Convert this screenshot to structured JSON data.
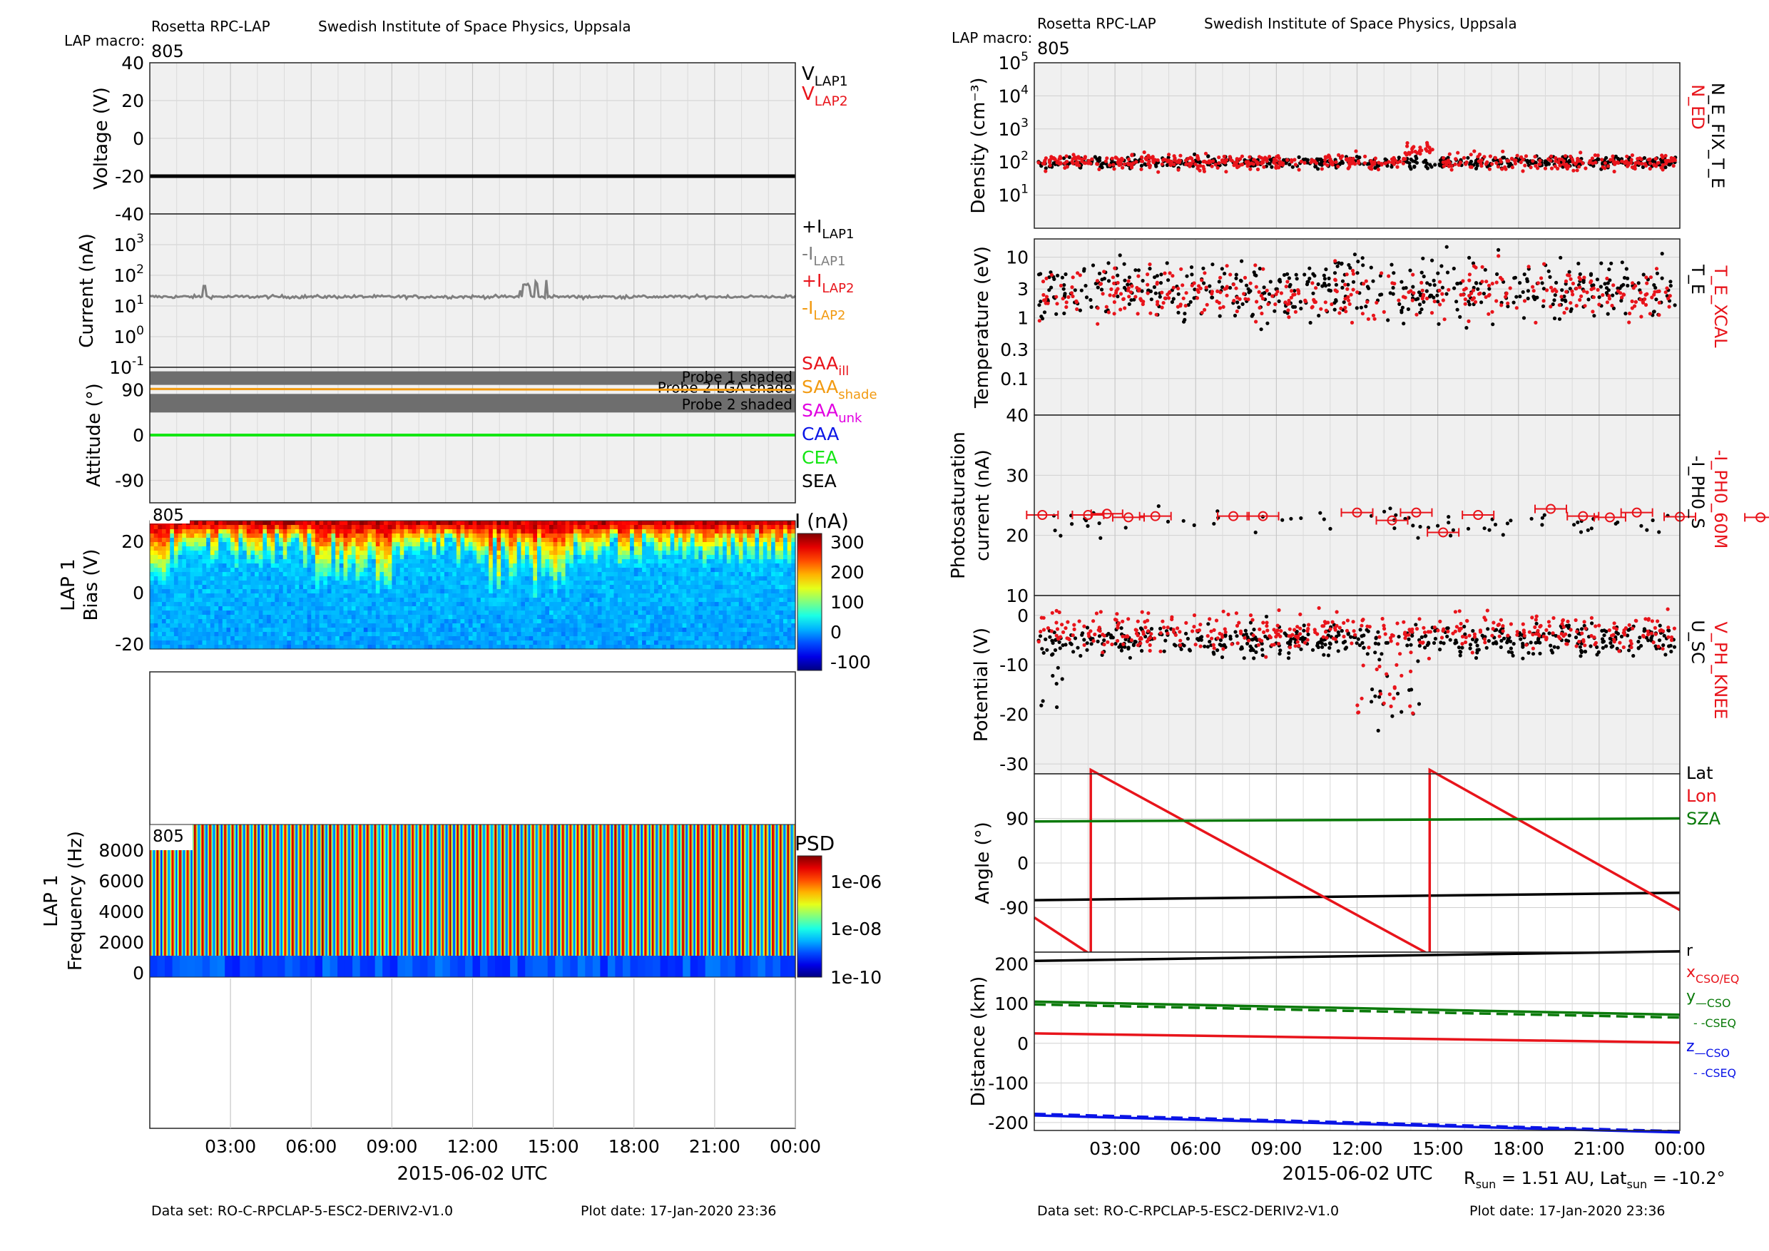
{
  "left": {
    "header": {
      "mission": "Rosetta RPC-LAP",
      "institute": "Swedish Institute of Space Physics, Uppsala",
      "macro_label": "LAP macro:",
      "macro": "805"
    },
    "footer": {
      "dataset": "Data set: RO-C-RPCLAP-5-ESC2-DERIV2-V1.0",
      "plotdate": "Plot date: 17-Jan-2020 23:36"
    },
    "xlabel": "2015-06-02 UTC",
    "xticks": [
      "03:00",
      "06:00",
      "09:00",
      "12:00",
      "15:00",
      "18:00",
      "21:00",
      "00:00"
    ]
  },
  "right": {
    "header": {
      "mission": "Rosetta RPC-LAP",
      "institute": "Swedish Institute of Space Physics, Uppsala",
      "macro_label": "LAP macro:",
      "macro": "805"
    },
    "footer": {
      "dataset": "Data set: RO-C-RPCLAP-5-ESC2-DERIV2-V1.0",
      "plotdate": "Plot date: 17-Jan-2020 23:36"
    },
    "xlabel": "2015-06-02 UTC",
    "xticks": [
      "03:00",
      "06:00",
      "09:00",
      "12:00",
      "15:00",
      "18:00",
      "21:00",
      "00:00"
    ],
    "rsun_note": "R<sub>sun</sub> = 1.51 AU, Lat<sub>sun</sub> = -10.2°"
  },
  "colors": {
    "red": "#e8141b",
    "black": "#000000",
    "green": "#0a7a0a",
    "blue": "#0a14e6",
    "gray": "#7f7f7f",
    "orange": "#f29a10",
    "magenta": "#e100e1",
    "bright_green": "#14e614"
  },
  "chart_data": [
    {
      "type": "line",
      "id": "voltage",
      "ylabel": "Voltage (V)",
      "ylim": [
        -40,
        40
      ],
      "yticks": [
        "40",
        "20",
        "0",
        "-20",
        "-40"
      ],
      "series": [
        {
          "name": "V_LAP1",
          "color": "#000000",
          "values": [
            -20,
            -20
          ]
        }
      ],
      "legend": [
        {
          "main": "V",
          "sub": "LAP1",
          "color": "#000000"
        },
        {
          "main": "V",
          "sub": "LAP2",
          "color": "#e8141b"
        }
      ],
      "grid": true
    },
    {
      "type": "scatter",
      "id": "current",
      "log": true,
      "ylabel": "Current (nA)",
      "ylim": [
        0.1,
        10000
      ],
      "yticks": [
        {
          "base": "10",
          "exp": "3"
        },
        {
          "base": "10",
          "exp": "2"
        },
        {
          "base": "10",
          "exp": "1"
        },
        {
          "base": "10",
          "exp": "0"
        },
        {
          "base": "10",
          "exp": "-1"
        }
      ],
      "series": [
        {
          "name": "+I_LAP1",
          "color": "#7f7f7f",
          "typical": 20
        }
      ],
      "legend": [
        {
          "main": "+I",
          "sub": "LAP1",
          "color": "#000000"
        },
        {
          "main": "-I",
          "sub": "LAP1",
          "color": "#7f7f7f"
        },
        {
          "main": "+I",
          "sub": "LAP2",
          "color": "#e8141b"
        },
        {
          "main": "-I",
          "sub": "LAP2",
          "color": "#f29a10"
        }
      ],
      "grid": true
    },
    {
      "type": "line",
      "id": "attitude",
      "ylabel": "Attitude (°)",
      "ylim": [
        -135,
        135
      ],
      "yticks": [
        "90",
        "0",
        "-90"
      ],
      "annotations": [
        "Probe 1 shaded",
        "Probe 2 LGA shade",
        "Probe 2 shaded"
      ],
      "series": [
        {
          "name": "SAA_shade",
          "color": "#f29a10",
          "values": [
            92,
            90
          ]
        },
        {
          "name": "CEA",
          "color": "#14e614",
          "values": [
            0,
            0
          ]
        }
      ],
      "legend": [
        {
          "main": "SAA",
          "sub": "ill",
          "color": "#e8141b"
        },
        {
          "main": "SAA",
          "sub": "shade",
          "color": "#f29a10"
        },
        {
          "main": "SAA",
          "sub": "unk",
          "color": "#e100e1"
        },
        {
          "main": "CAA",
          "sub": "",
          "color": "#0a14e6"
        },
        {
          "main": "CEA",
          "sub": "",
          "color": "#14e614"
        },
        {
          "main": "SEA",
          "sub": "",
          "color": "#000000"
        }
      ],
      "grid": true
    },
    {
      "type": "heatmap",
      "id": "sweep",
      "macro": "805",
      "ylabel": "LAP 1 Bias (V)",
      "yticks": [
        "20",
        "0",
        "-20"
      ],
      "colorbar": {
        "label": "I (nA)",
        "ticks": [
          "300",
          "200",
          "100",
          "0",
          "-100"
        ]
      }
    },
    {
      "type": "heatmap",
      "id": "psd",
      "macro": "805",
      "ylabel": "LAP 1 Frequency (Hz)",
      "yticks": [
        "8000",
        "6000",
        "4000",
        "2000",
        "0"
      ],
      "colorbar": {
        "label": "PSD",
        "ticks": [
          "1e-06",
          "1e-08",
          "1e-10"
        ]
      }
    },
    {
      "type": "scatter",
      "id": "density",
      "log": true,
      "ylabel": "Density (cm⁻³)",
      "ylim": [
        1,
        100000
      ],
      "yticks": [
        {
          "base": "10",
          "exp": "5"
        },
        {
          "base": "10",
          "exp": "4"
        },
        {
          "base": "10",
          "exp": "3"
        },
        {
          "base": "10",
          "exp": "2"
        },
        {
          "base": "10",
          "exp": "1"
        }
      ],
      "series": [
        {
          "name": "N_ED",
          "color": "#e8141b",
          "typical": 100
        },
        {
          "name": "N_E_FIX_T_E",
          "color": "#000000",
          "typical": 100
        }
      ],
      "legend_right": [
        {
          "text": "N_ED",
          "color": "#e8141b"
        },
        {
          "text": "N_E_FIX_T_E",
          "color": "#000000"
        }
      ],
      "grid": true
    },
    {
      "type": "scatter",
      "id": "temperature",
      "log": true,
      "ylabel": "Temperature (eV)",
      "ylim": [
        0.03,
        20
      ],
      "yticks": [
        "10",
        "3",
        "1",
        "0.3",
        "0.1"
      ],
      "series": [
        {
          "name": "T_E_XCAL",
          "color": "#e8141b",
          "typical": 2.5
        },
        {
          "name": "T_E",
          "color": "#000000",
          "typical": 3
        }
      ],
      "legend_right": [
        {
          "text": "T_E_XCAL",
          "color": "#e8141b"
        },
        {
          "text": "T_E",
          "color": "#000000"
        }
      ],
      "grid": true
    },
    {
      "type": "scatter",
      "id": "photosat",
      "ylabel": "Photosaturation current (nA)",
      "ylim": [
        10,
        40
      ],
      "yticks": [
        "40",
        "30",
        "20",
        "10"
      ],
      "series": [
        {
          "name": "-I_PH0_60M",
          "color": "#e8141b",
          "x": [
            0.3,
            2.0,
            2.7,
            3.5,
            4.5,
            7.4,
            8.5,
            12.0,
            13.3,
            14.2,
            15.2,
            16.5,
            19.2,
            20.4,
            21.4,
            22.4,
            24.0,
            27.0
          ],
          "values": [
            23.4,
            23.4,
            23.6,
            23.0,
            23.2,
            23.2,
            23.2,
            23.8,
            22.5,
            23.8,
            20.5,
            23.4,
            24.4,
            23.2,
            23.0,
            23.8,
            23.1,
            23.0
          ]
        },
        {
          "name": "-I_PH0_S",
          "color": "#000000",
          "typical": 22
        }
      ],
      "legend_right": [
        {
          "text": "-I_PH0_60M",
          "color": "#e8141b"
        },
        {
          "text": "-I_PH0_S",
          "color": "#000000"
        }
      ],
      "grid": true
    },
    {
      "type": "scatter",
      "id": "potential",
      "ylabel": "Potential (V)",
      "ylim": [
        -32,
        4
      ],
      "yticks": [
        "0",
        "-10",
        "-20",
        "-30"
      ],
      "series": [
        {
          "name": "V_PH_KNEE",
          "color": "#e8141b",
          "typical": -3
        },
        {
          "name": "U_SC",
          "color": "#000000",
          "typical": -5
        }
      ],
      "legend_right": [
        {
          "text": "V_PH_KNEE",
          "color": "#e8141b"
        },
        {
          "text": "U_SC",
          "color": "#000000"
        }
      ],
      "grid": true
    },
    {
      "type": "line",
      "id": "angle",
      "ylabel": "Angle (°)",
      "ylim": [
        -180,
        180
      ],
      "yticks": [
        "90",
        "0",
        "-90"
      ],
      "series": [
        {
          "name": "Lat",
          "color": "#000000",
          "x": [
            0,
            24
          ],
          "values": [
            -75,
            -60
          ]
        },
        {
          "name": "Lon",
          "color": "#e8141b",
          "x": [
            0,
            2.1,
            2.1,
            14.7,
            14.7,
            24
          ],
          "values": [
            -110,
            -185,
            188,
            -185,
            188,
            -95
          ]
        },
        {
          "name": "SZA",
          "color": "#0a7a0a",
          "x": [
            0,
            24
          ],
          "values": [
            84,
            90
          ]
        }
      ],
      "legend": [
        {
          "main": "Lat",
          "sub": "",
          "color": "#000000"
        },
        {
          "main": "Lon",
          "sub": "",
          "color": "#e8141b"
        },
        {
          "main": "SZA",
          "sub": "",
          "color": "#0a7a0a"
        }
      ],
      "grid": true
    },
    {
      "type": "line",
      "id": "distance",
      "ylabel": "Distance (km)",
      "ylim": [
        -220,
        230
      ],
      "yticks": [
        "200",
        "100",
        "0",
        "-100",
        "-200"
      ],
      "series": [
        {
          "name": "r",
          "color": "#000000",
          "x": [
            0,
            24
          ],
          "values": [
            208,
            232
          ]
        },
        {
          "name": "x CSO/EQ",
          "color": "#e8141b",
          "x": [
            0,
            24
          ],
          "values": [
            25,
            2
          ]
        },
        {
          "name": "y CSO",
          "color": "#0a7a0a",
          "x": [
            0,
            24
          ],
          "values": [
            105,
            72
          ]
        },
        {
          "name": "y CSEQ",
          "color": "#0a7a0a",
          "dash": true,
          "x": [
            0,
            24
          ],
          "values": [
            98,
            65
          ]
        },
        {
          "name": "z CSO",
          "color": "#0a14e6",
          "x": [
            0,
            24
          ],
          "values": [
            -182,
            -225
          ]
        },
        {
          "name": "z CSEQ",
          "color": "#0a14e6",
          "dash": true,
          "x": [
            0,
            24
          ],
          "values": [
            -178,
            -222
          ]
        }
      ],
      "legend": [
        {
          "main": "r",
          "sub": "",
          "color": "#000000"
        },
        {
          "main": "x",
          "sub": "CSO/EQ",
          "color": "#e8141b"
        },
        {
          "main": "y",
          "sub": "—CSO",
          "color": "#0a7a0a"
        },
        {
          "main": "",
          "sub": "- -CSEQ",
          "color": "#0a7a0a"
        },
        {
          "main": "z",
          "sub": "—CSO",
          "color": "#0a14e6"
        },
        {
          "main": "",
          "sub": "- -CSEQ",
          "color": "#0a14e6"
        }
      ],
      "grid": true
    }
  ]
}
